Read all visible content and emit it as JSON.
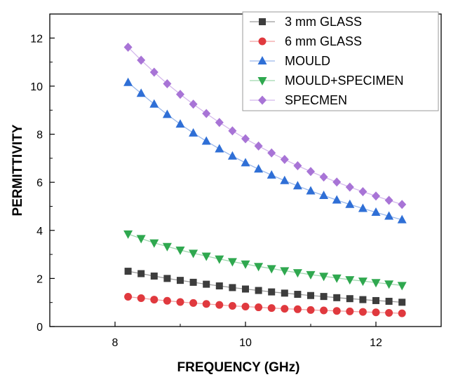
{
  "chart_data": {
    "type": "line",
    "title": "",
    "xlabel": "FREQUENCY (GHz)",
    "ylabel": "PERMITTIVITY",
    "xlim": [
      7,
      13
    ],
    "ylim": [
      0,
      13
    ],
    "xticks": [
      8,
      10,
      12
    ],
    "yticks": [
      0,
      2,
      4,
      6,
      8,
      10,
      12
    ],
    "xtick_labels": [
      "8",
      "10",
      "12"
    ],
    "ytick_labels": [
      "0",
      "2",
      "4",
      "6",
      "8",
      "10",
      "12"
    ],
    "grid": false,
    "legend_position": "top-right",
    "x": [
      8.2,
      8.4,
      8.6,
      8.8,
      9.0,
      9.2,
      9.4,
      9.6,
      9.8,
      10.0,
      10.2,
      10.4,
      10.6,
      10.8,
      11.0,
      11.2,
      11.4,
      11.6,
      11.8,
      12.0,
      12.2,
      12.4
    ],
    "series": [
      {
        "name": "3 mm GLASS",
        "marker": "square",
        "color": "#3d3d3d",
        "line_color": "#9a9a9a",
        "values": [
          2.3,
          2.2,
          2.1,
          2.0,
          1.92,
          1.84,
          1.76,
          1.69,
          1.62,
          1.56,
          1.5,
          1.44,
          1.39,
          1.34,
          1.29,
          1.25,
          1.2,
          1.16,
          1.12,
          1.08,
          1.05,
          1.01
        ]
      },
      {
        "name": "6 mm GLASS",
        "marker": "circle",
        "color": "#e0393e",
        "line_color": "#f2a0a2",
        "values": [
          1.24,
          1.18,
          1.12,
          1.07,
          1.02,
          0.98,
          0.94,
          0.9,
          0.86,
          0.83,
          0.8,
          0.77,
          0.74,
          0.72,
          0.69,
          0.67,
          0.65,
          0.63,
          0.61,
          0.59,
          0.57,
          0.55
        ]
      },
      {
        "name": "MOULD",
        "marker": "triangle-up",
        "color": "#2f6fd6",
        "line_color": "#9bb8ea",
        "values": [
          10.15,
          9.7,
          9.25,
          8.82,
          8.42,
          8.05,
          7.71,
          7.39,
          7.09,
          6.81,
          6.55,
          6.3,
          6.07,
          5.85,
          5.64,
          5.45,
          5.26,
          5.08,
          4.91,
          4.75,
          4.59,
          4.44
        ]
      },
      {
        "name": "MOULD+SPECIMEN",
        "marker": "triangle-down",
        "color": "#2fa84f",
        "line_color": "#9fd6ae",
        "values": [
          3.85,
          3.66,
          3.48,
          3.33,
          3.18,
          3.05,
          2.93,
          2.81,
          2.7,
          2.6,
          2.5,
          2.41,
          2.32,
          2.24,
          2.16,
          2.09,
          2.02,
          1.95,
          1.89,
          1.83,
          1.77,
          1.71
        ]
      },
      {
        "name": "SPECMEN",
        "marker": "diamond",
        "color": "#a874d6",
        "line_color": "#d4b8ec",
        "values": [
          11.62,
          11.08,
          10.58,
          10.1,
          9.66,
          9.25,
          8.86,
          8.49,
          8.14,
          7.81,
          7.51,
          7.22,
          6.95,
          6.69,
          6.45,
          6.22,
          6.01,
          5.8,
          5.61,
          5.43,
          5.25,
          5.08
        ]
      }
    ]
  }
}
